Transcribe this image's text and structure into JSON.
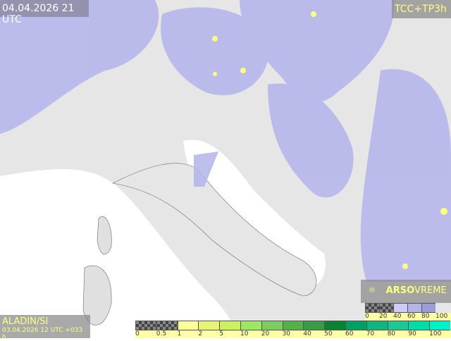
{
  "valid_time": "04.04.2026 21 UTC",
  "product": "TCC+TP3h",
  "model": {
    "name": "ALADIN/SI",
    "run": "03.04.2026 12 UTC +033 h"
  },
  "brand": {
    "icon": "sun-cloud-icon",
    "part1": "ARSO",
    "part2": "VREME"
  },
  "cloud_legend": {
    "labels": [
      "0",
      "20",
      "40",
      "60",
      "80",
      "100"
    ],
    "colors": [
      "checker",
      "checker",
      "#ccccf4",
      "#b4b4e8",
      "#9c9cd8"
    ]
  },
  "precip_legend": {
    "labels": [
      "0",
      "0.5",
      "1",
      "2",
      "5",
      "10",
      "20",
      "30",
      "40",
      "50",
      "60",
      "70",
      "80",
      "90",
      "100"
    ],
    "colors": [
      "checker",
      "checker",
      "#ffff99",
      "#e6f57a",
      "#ccf060",
      "#9ce664",
      "#7dcc5f",
      "#55b04a",
      "#3a9a48",
      "#0a8232",
      "#00a064",
      "#14b482",
      "#1ec896",
      "#00dcaa",
      "#00f0c8"
    ]
  },
  "colors": {
    "land": "#e6e6e6",
    "sea": "#ffffff",
    "cloud": "#b4b4ec",
    "label_text": "#ffff80"
  }
}
